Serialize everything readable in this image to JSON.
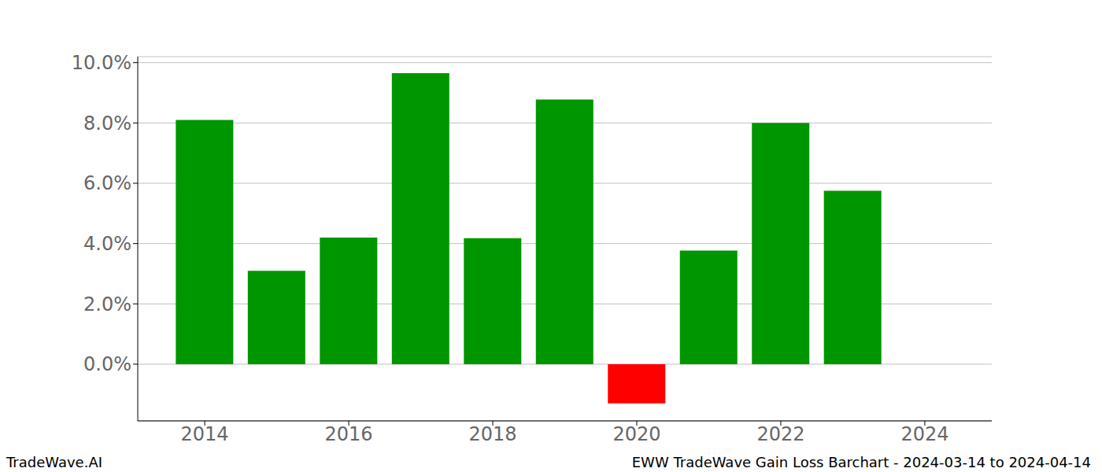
{
  "chart_data": {
    "type": "bar",
    "annotations": [
      "TradeWave.AI",
      "EWW TradeWave Gain Loss Barchart - 2024-03-14 to 2024-04-14"
    ],
    "x": [
      2014,
      2015,
      2016,
      2017,
      2018,
      2019,
      2020,
      2021,
      2022,
      2023
    ],
    "values": [
      8.1,
      3.1,
      4.2,
      9.65,
      4.18,
      8.78,
      -1.3,
      3.77,
      8.0,
      5.75
    ],
    "colors": [
      "#009600",
      "#009600",
      "#009600",
      "#009600",
      "#009600",
      "#009600",
      "#ff0000",
      "#009600",
      "#009600",
      "#009600"
    ],
    "xlim": [
      2013.07,
      2024.93
    ],
    "xticks": [
      2014,
      2016,
      2018,
      2020,
      2022,
      2024
    ],
    "ylim": [
      -1.88,
      10.2
    ],
    "yticks": [
      {
        "value": 0,
        "label": "0.0%"
      },
      {
        "value": 2,
        "label": "2.0%"
      },
      {
        "value": 4,
        "label": "4.0%"
      },
      {
        "value": 6,
        "label": "6.0%"
      },
      {
        "value": 8,
        "label": "8.0%"
      },
      {
        "value": 10,
        "label": "10.0%"
      }
    ],
    "grid": true
  }
}
